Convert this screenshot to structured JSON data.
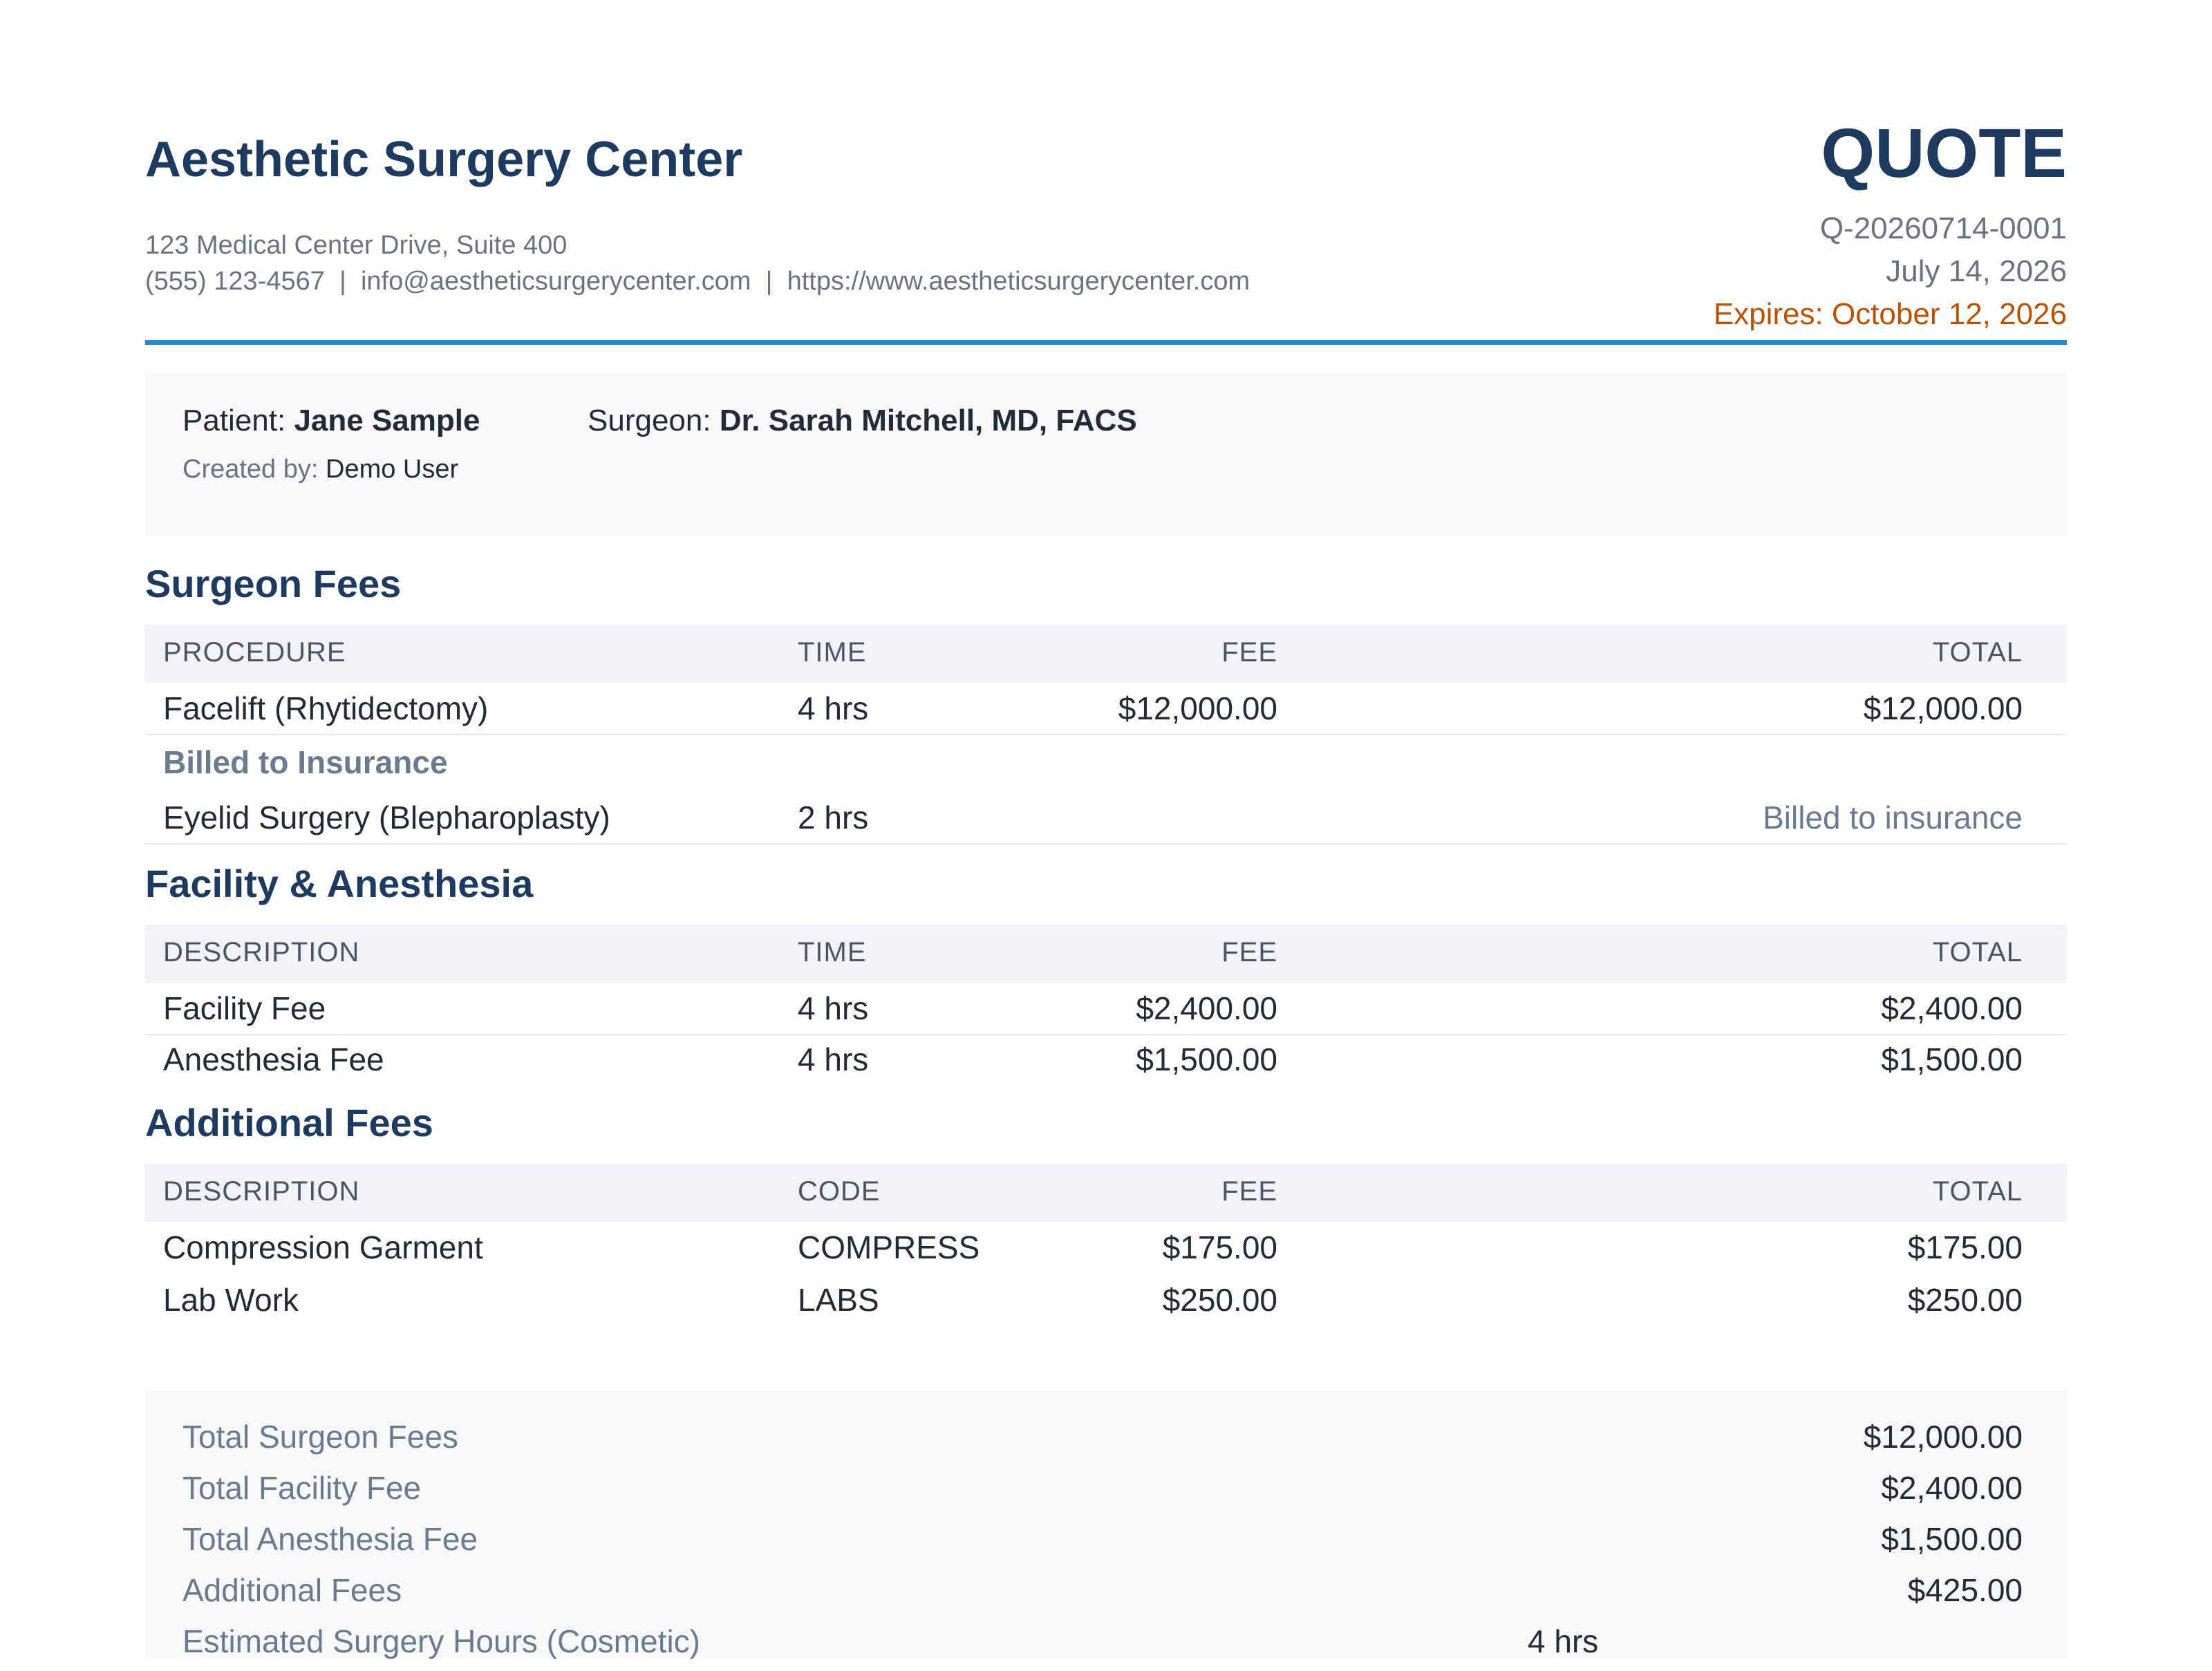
{
  "header": {
    "org_name": "Aesthetic Surgery Center",
    "address": "123 Medical Center Drive, Suite 400",
    "phone": "(555) 123-4567",
    "email": "info@aestheticsurgerycenter.com",
    "website": "https://www.aestheticsurgerycenter.com",
    "separator": "  |  ",
    "quote_title": "QUOTE",
    "quote_number": "Q-20260714-0001",
    "quote_date": "July 14, 2026",
    "expires": "Expires: October 12, 2026",
    "accent_color": "#2588d8",
    "expires_color": "#b45309"
  },
  "patient": {
    "patient_label": "Patient: ",
    "patient_name": "Jane Sample",
    "surgeon_label": "Surgeon: ",
    "surgeon_name": "Dr. Sarah Mitchell, MD, FACS",
    "created_label": "Created by: ",
    "created_by": "Demo User"
  },
  "surgeon_fees": {
    "title": "Surgeon Fees",
    "headers": [
      "PROCEDURE",
      "TIME",
      "FEE",
      "TOTAL"
    ],
    "rows": [
      {
        "procedure": "Facelift (Rhytidectomy)",
        "time": "4 hrs",
        "fee": "$12,000.00",
        "total": "$12,000.00"
      }
    ],
    "insurance_heading": "Billed to Insurance",
    "insurance_rows": [
      {
        "procedure": "Eyelid Surgery (Blepharoplasty)",
        "time": "2 hrs",
        "fee": "",
        "total": "Billed to insurance"
      }
    ]
  },
  "facility_fees": {
    "title": "Facility & Anesthesia",
    "headers": [
      "DESCRIPTION",
      "TIME",
      "FEE",
      "TOTAL"
    ],
    "rows": [
      {
        "description": "Facility Fee",
        "time": "4 hrs",
        "fee": "$2,400.00",
        "total": "$2,400.00"
      },
      {
        "description": "Anesthesia Fee",
        "time": "4 hrs",
        "fee": "$1,500.00",
        "total": "$1,500.00"
      }
    ]
  },
  "additional_fees": {
    "title": "Additional Fees",
    "headers": [
      "DESCRIPTION",
      "CODE",
      "FEE",
      "TOTAL"
    ],
    "rows": [
      {
        "description": "Compression Garment",
        "code": "COMPRESS",
        "fee": "$175.00",
        "total": "$175.00"
      },
      {
        "description": "Lab Work",
        "code": "LABS",
        "fee": "$250.00",
        "total": "$250.00"
      }
    ]
  },
  "totals": {
    "rows": [
      {
        "label": "Total Surgeon Fees",
        "value": "$12,000.00"
      },
      {
        "label": "Total Facility Fee",
        "value": "$2,400.00"
      },
      {
        "label": "Total Anesthesia Fee",
        "value": "$1,500.00"
      },
      {
        "label": "Additional Fees",
        "value": "$425.00"
      }
    ],
    "hours_label": "Estimated Surgery Hours (Cosmetic)",
    "hours_value": "4 hrs"
  }
}
